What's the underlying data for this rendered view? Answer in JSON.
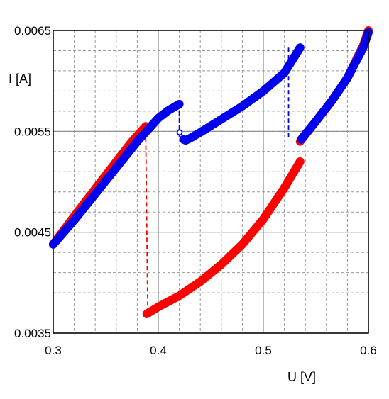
{
  "chart_data": {
    "type": "line",
    "title": "",
    "xlabel": "U [V]",
    "ylabel": "I [A]",
    "xlim": [
      0.3,
      0.6
    ],
    "ylim": [
      0.0035,
      0.0065
    ],
    "xticks": [
      0.3,
      0.4,
      0.5,
      0.6
    ],
    "xtick_labels": [
      "0.3",
      "0.4",
      "0.5",
      "0.6"
    ],
    "yticks": [
      0.0035,
      0.0045,
      0.0055,
      0.0065
    ],
    "ytick_labels": [
      "0.0035",
      "0.0045",
      "0.0055",
      "0.0065"
    ],
    "minor_grid": {
      "x_step": 0.02,
      "y_step": 0.0002
    },
    "grid": true,
    "colors": {
      "red": "#ff0000",
      "blue": "#0000ee",
      "grid_major": "#888888",
      "grid_minor": "#999999"
    },
    "series": [
      {
        "color": "#ff0000",
        "segments": [
          {
            "x": [
              0.3,
              0.32,
              0.34,
              0.36,
              0.375,
              0.388
            ],
            "y": [
              0.00438,
              0.00466,
              0.00493,
              0.0052,
              0.0054,
              0.00555
            ]
          },
          {
            "x": [
              0.389,
              0.4,
              0.42,
              0.44,
              0.46,
              0.48,
              0.5,
              0.52,
              0.535
            ],
            "y": [
              0.00369,
              0.00376,
              0.00387,
              0.00401,
              0.00418,
              0.00438,
              0.00463,
              0.00494,
              0.0052
            ]
          },
          {
            "x": [
              0.535,
              0.55,
              0.565,
              0.58,
              0.595,
              0.6
            ],
            "y": [
              0.0054,
              0.0056,
              0.0058,
              0.00603,
              0.00635,
              0.0065
            ]
          }
        ],
        "jumps": [
          {
            "x": [
              0.388,
              0.39
            ],
            "y": [
              0.0055,
              0.0037
            ]
          }
        ]
      },
      {
        "color": "#0000ee",
        "segments": [
          {
            "x": [
              0.3,
              0.32,
              0.34,
              0.36,
              0.38,
              0.4,
              0.41,
              0.42
            ],
            "y": [
              0.00438,
              0.00462,
              0.00488,
              0.00514,
              0.0054,
              0.00563,
              0.00571,
              0.00577
            ]
          },
          {
            "x": [
              0.424,
              0.426,
              0.43,
              0.44,
              0.46,
              0.48,
              0.5,
              0.52,
              0.535
            ],
            "y": [
              0.00542,
              0.00541,
              0.00543,
              0.00549,
              0.00562,
              0.00575,
              0.0059,
              0.00608,
              0.00633
            ]
          },
          {
            "x": [
              0.536,
              0.55,
              0.565,
              0.58,
              0.595,
              0.6
            ],
            "y": [
              0.00542,
              0.0056,
              0.0058,
              0.00603,
              0.00633,
              0.00648
            ]
          }
        ],
        "jumps": [
          {
            "x": [
              0.42,
              0.42
            ],
            "y": [
              0.00577,
              0.00542
            ]
          },
          {
            "x": [
              0.524,
              0.524
            ],
            "y": [
              0.00633,
              0.00542
            ]
          }
        ],
        "markers": [
          {
            "x": 0.4203,
            "y": 0.00549
          }
        ]
      }
    ]
  }
}
